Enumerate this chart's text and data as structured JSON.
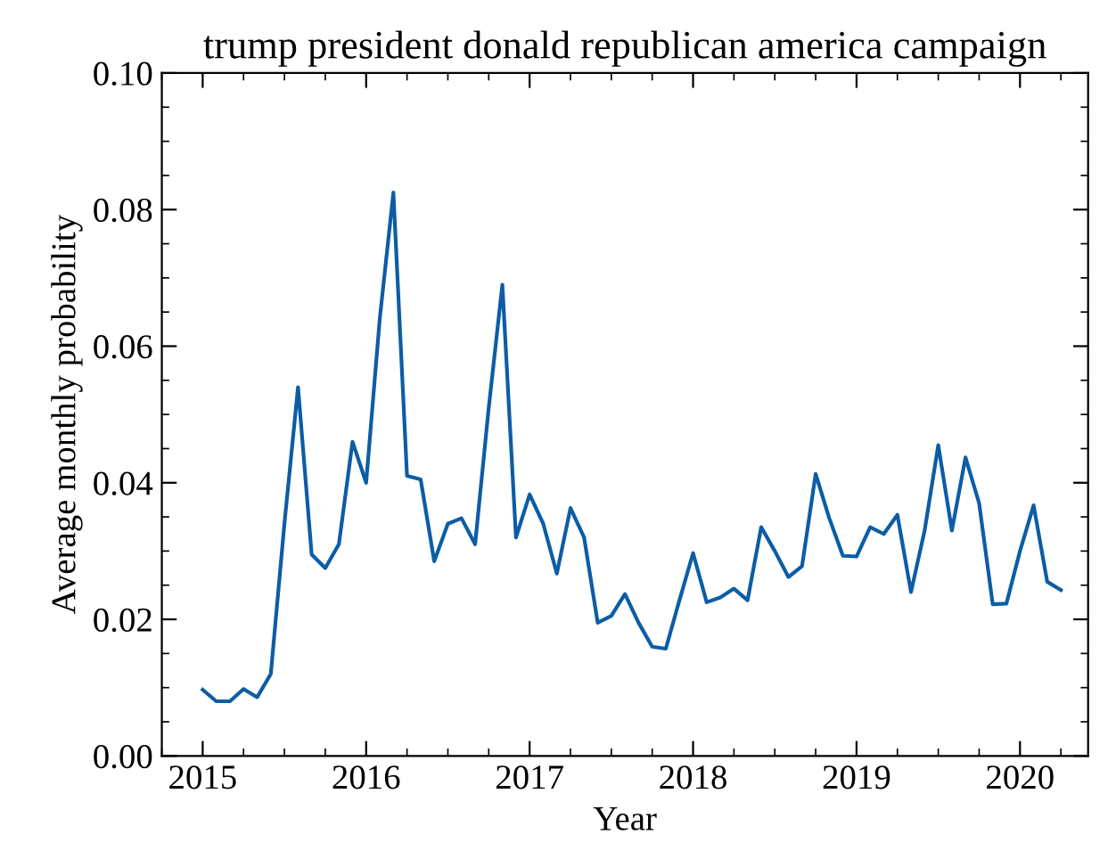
{
  "chart_data": {
    "type": "line",
    "title": "trump president donald republican america campaign",
    "xlabel": "Year",
    "ylabel": "Average monthly probability",
    "x": [
      "2015-01",
      "2015-02",
      "2015-03",
      "2015-04",
      "2015-05",
      "2015-06",
      "2015-07",
      "2015-08",
      "2015-09",
      "2015-10",
      "2015-11",
      "2015-12",
      "2016-01",
      "2016-02",
      "2016-03",
      "2016-04",
      "2016-05",
      "2016-06",
      "2016-07",
      "2016-08",
      "2016-09",
      "2016-10",
      "2016-11",
      "2016-12",
      "2017-01",
      "2017-02",
      "2017-03",
      "2017-04",
      "2017-05",
      "2017-06",
      "2017-07",
      "2017-08",
      "2017-09",
      "2017-10",
      "2017-11",
      "2017-12",
      "2018-01",
      "2018-02",
      "2018-03",
      "2018-04",
      "2018-05",
      "2018-06",
      "2018-07",
      "2018-08",
      "2018-09",
      "2018-10",
      "2018-11",
      "2018-12",
      "2019-01",
      "2019-02",
      "2019-03",
      "2019-04",
      "2019-05",
      "2019-06",
      "2019-07",
      "2019-08",
      "2019-09",
      "2019-10",
      "2019-11",
      "2019-12",
      "2020-01",
      "2020-02",
      "2020-03",
      "2020-04"
    ],
    "series": [
      {
        "color": "#0c5da5",
        "values": [
          0.0097,
          0.008,
          0.008,
          0.0098,
          0.0086,
          0.012,
          0.034,
          0.054,
          0.0295,
          0.0275,
          0.031,
          0.046,
          0.04,
          0.064,
          0.0825,
          0.041,
          0.0405,
          0.0285,
          0.034,
          0.0348,
          0.031,
          0.051,
          0.069,
          0.032,
          0.0383,
          0.034,
          0.0267,
          0.0363,
          0.032,
          0.0195,
          0.0205,
          0.0237,
          0.0195,
          0.016,
          0.0157,
          0.0228,
          0.0297,
          0.0225,
          0.0232,
          0.0245,
          0.0228,
          0.0335,
          0.03,
          0.0262,
          0.0278,
          0.0413,
          0.0348,
          0.0293,
          0.0292,
          0.0335,
          0.0325,
          0.0353,
          0.024,
          0.033,
          0.0455,
          0.033,
          0.0437,
          0.037,
          0.0222,
          0.0223,
          0.03,
          0.0367,
          0.0255,
          0.0243
        ]
      }
    ],
    "xlim": [
      "2014-10",
      "2020-06"
    ],
    "xticks": [
      {
        "value": "2015",
        "label": "2015"
      },
      {
        "value": "2016",
        "label": "2016"
      },
      {
        "value": "2017",
        "label": "2017"
      },
      {
        "value": "2018",
        "label": "2018"
      },
      {
        "value": "2019",
        "label": "2019"
      },
      {
        "value": "2020",
        "label": "2020"
      }
    ],
    "ylim": [
      0,
      0.1
    ],
    "yticks": [
      {
        "value": 0,
        "label": "0.00"
      },
      {
        "value": 0.02,
        "label": "0.02"
      },
      {
        "value": 0.04,
        "label": "0.04"
      },
      {
        "value": 0.06,
        "label": "0.06"
      },
      {
        "value": 0.08,
        "label": "0.08"
      },
      {
        "value": 0.1,
        "label": "0.10"
      }
    ],
    "grid": false,
    "legend": false,
    "marker": "none",
    "line_style": "solid"
  }
}
